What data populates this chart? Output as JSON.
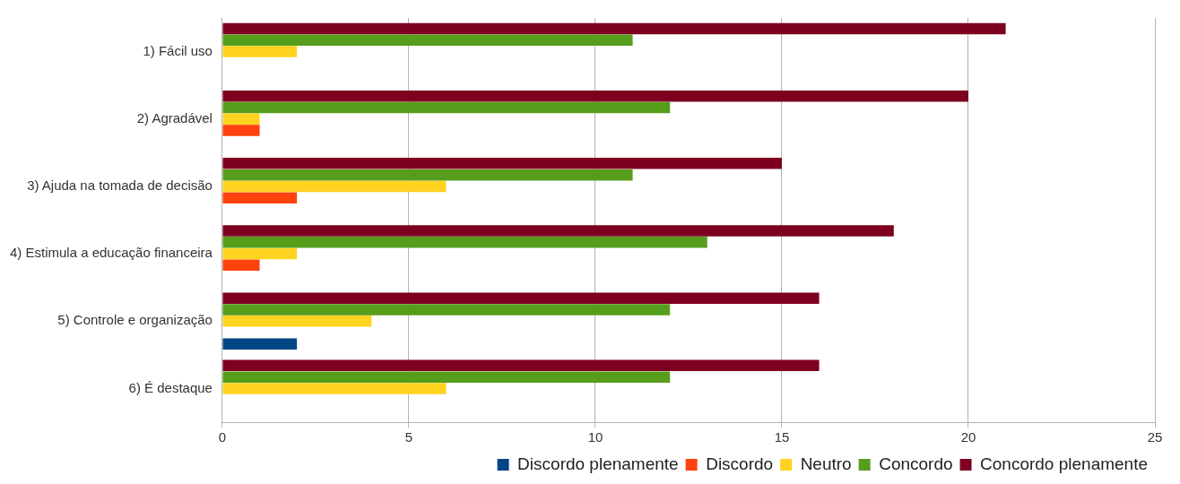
{
  "chart_data": {
    "type": "bar",
    "orientation": "horizontal",
    "categories": [
      "1) Fácil uso",
      "2) Agradável",
      "3) Ajuda na tomada de decisão",
      "4) Estimula a educação financeira",
      "5) Controle e organização",
      "6) É destaque"
    ],
    "series": [
      {
        "name": "Discordo plenamente",
        "color": "#004586",
        "values": [
          0,
          0,
          0,
          0,
          2,
          0
        ]
      },
      {
        "name": "Discordo",
        "color": "#ff420e",
        "values": [
          0,
          1,
          2,
          1,
          0,
          0
        ]
      },
      {
        "name": "Neutro",
        "color": "#ffd320",
        "values": [
          2,
          1,
          6,
          2,
          4,
          6
        ]
      },
      {
        "name": "Concordo",
        "color": "#579d1c",
        "values": [
          11,
          12,
          11,
          13,
          12,
          12
        ]
      },
      {
        "name": "Concordo plenamente",
        "color": "#7e0021",
        "values": [
          21,
          20,
          15,
          18,
          16,
          16
        ]
      }
    ],
    "xlim": [
      0,
      25
    ],
    "xticks": [
      0,
      5,
      10,
      15,
      20,
      25
    ],
    "grid": "x",
    "legend": "bottom right"
  }
}
